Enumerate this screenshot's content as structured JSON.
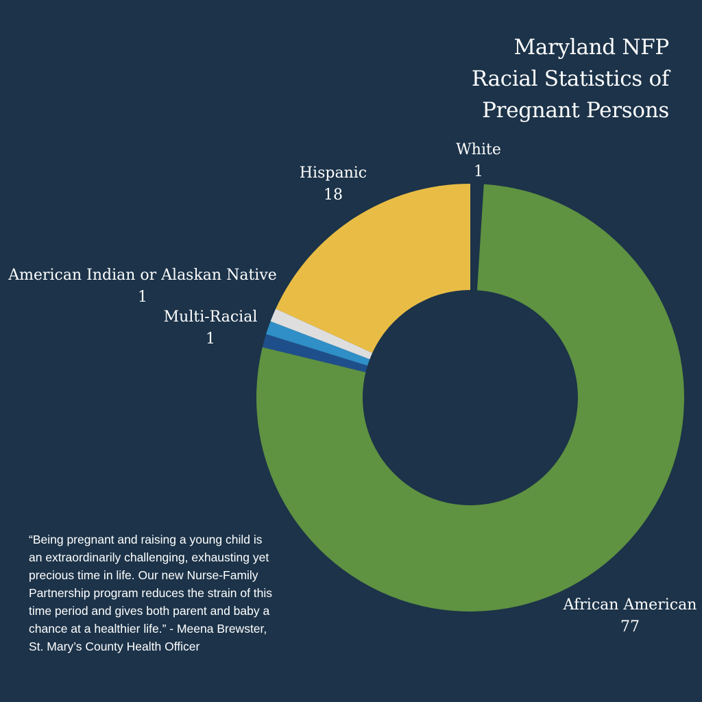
{
  "title_lines": [
    "Maryland NFP",
    "Racial Statistics of",
    "Pregnant Persons"
  ],
  "chart_data": {
    "type": "pie",
    "variant": "donut",
    "title": "Maryland NFP Racial Statistics of Pregnant Persons",
    "slices": [
      {
        "label": "White",
        "value": 1,
        "color": "#1c3349"
      },
      {
        "label": "African American",
        "value": 77,
        "color": "#5f9241"
      },
      {
        "label": "Multi-Racial",
        "value": 1,
        "color": "#1f4f8a"
      },
      {
        "label": "American Indian or Alaskan Native",
        "value": 1,
        "color": "#2f8fc6"
      },
      {
        "label": "",
        "value": 1,
        "color": "#dedede"
      },
      {
        "label": "Hispanic",
        "value": 18,
        "color": "#e9bd45"
      }
    ],
    "start_angle_deg": 0,
    "direction": "clockwise"
  },
  "labels": {
    "white": {
      "name": "White",
      "value": "1"
    },
    "african_american": {
      "name": "African American",
      "value": "77"
    },
    "multi_racial": {
      "name": "Multi-Racial",
      "value": "1"
    },
    "american_indian": {
      "name": "American Indian or Alaskan Native",
      "value": "1"
    },
    "hispanic": {
      "name": "Hispanic",
      "value": "18"
    }
  },
  "quote": "“Being pregnant and raising a young child is an extraordinarily challenging, exhausting yet precious time in life. Our new Nurse-Family Partnership program reduces the strain of this time period and gives both parent and baby a chance at a healthier life.” - Meena Brewster, St. Mary’s County Health Officer",
  "colors": {
    "background": "#1c3349",
    "text": "#ffffff"
  }
}
